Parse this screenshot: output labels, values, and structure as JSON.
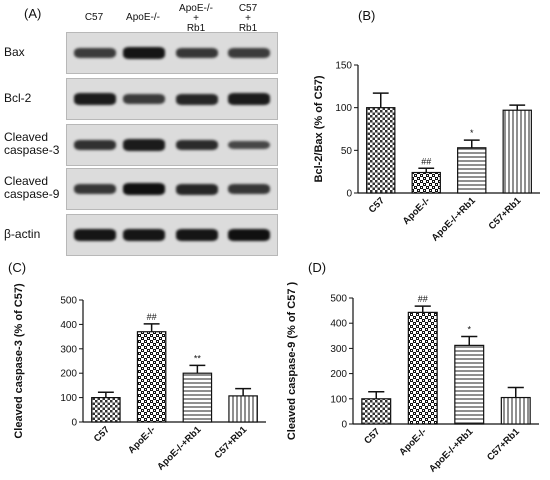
{
  "western_blot": {
    "panel_label": "(A)",
    "lanes": [
      {
        "lines": [
          "C57"
        ]
      },
      {
        "lines": [
          "ApoE-/-"
        ]
      },
      {
        "lines": [
          "ApoE-/-",
          "+",
          "Rb1"
        ]
      },
      {
        "lines": [
          "C57",
          "+",
          "Rb1"
        ]
      }
    ],
    "rows": [
      {
        "lines": [
          "Bax"
        ],
        "band_intensity": [
          0.55,
          0.9,
          0.6,
          0.55
        ]
      },
      {
        "lines": [
          "Bcl-2"
        ],
        "band_intensity": [
          0.85,
          0.55,
          0.75,
          0.85
        ]
      },
      {
        "lines": [
          "Cleaved",
          "caspase-3"
        ],
        "band_intensity": [
          0.65,
          0.85,
          0.7,
          0.45
        ]
      },
      {
        "lines": [
          "Cleaved",
          "caspase-9"
        ],
        "band_intensity": [
          0.6,
          0.95,
          0.75,
          0.6
        ]
      },
      {
        "lines": [
          "β-actin"
        ],
        "band_intensity": [
          0.9,
          0.9,
          0.9,
          0.95
        ]
      }
    ]
  },
  "chart_data": [
    {
      "panel_label": "(B)",
      "type": "bar",
      "ylabel": "Bcl-2/Bax (% of C57)",
      "ylim": [
        0,
        150
      ],
      "yticks": [
        0,
        50,
        100,
        150
      ],
      "categories": [
        "C57",
        "ApoE-/-",
        "ApoE-/-+Rb1",
        "C57+Rb1"
      ],
      "values": [
        100,
        24,
        53,
        97
      ],
      "errors": [
        17,
        5,
        9,
        6
      ],
      "annotations": [
        "",
        "##",
        "*",
        ""
      ],
      "patterns": [
        "checker",
        "checker-dense",
        "hlines",
        "vlines"
      ]
    },
    {
      "panel_label": "(C)",
      "type": "bar",
      "ylabel": "Cleaved caspase-3 (% of C57)",
      "ylim": [
        0,
        500
      ],
      "yticks": [
        0,
        100,
        200,
        300,
        400,
        500
      ],
      "categories": [
        "C57",
        "ApoE-/-",
        "ApoE-/-+Rb1",
        "C57+Rb1"
      ],
      "values": [
        100,
        370,
        200,
        107
      ],
      "errors": [
        22,
        32,
        32,
        30
      ],
      "annotations": [
        "",
        "##",
        "**",
        ""
      ],
      "patterns": [
        "checker",
        "checker-dense",
        "hlines",
        "vlines"
      ]
    },
    {
      "panel_label": "(D)",
      "type": "bar",
      "ylabel": "Cleaved caspase-9 (% of C57 )",
      "ylim": [
        0,
        500
      ],
      "yticks": [
        0,
        100,
        200,
        300,
        400,
        500
      ],
      "categories": [
        "C57",
        "ApoE-/-",
        "ApoE-/-+Rb1",
        "C57+Rb1"
      ],
      "values": [
        100,
        443,
        312,
        105
      ],
      "errors": [
        28,
        25,
        35,
        40
      ],
      "annotations": [
        "",
        "##",
        "*",
        ""
      ],
      "patterns": [
        "checker",
        "checker-dense",
        "hlines",
        "vlines"
      ]
    }
  ]
}
